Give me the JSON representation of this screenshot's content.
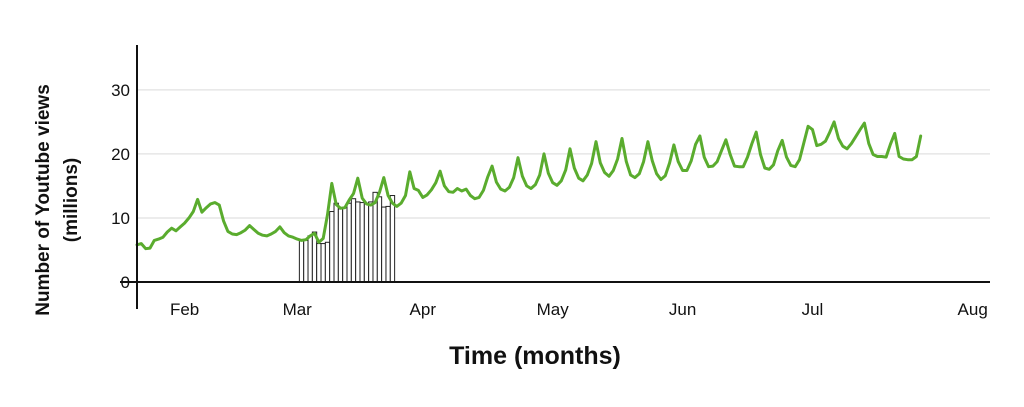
{
  "chart_data": {
    "type": "line",
    "xlabel": "Time (months)",
    "ylabel_lines": [
      "Number of Youtube views",
      "(millions)"
    ],
    "ylim": [
      0,
      37
    ],
    "xlim": [
      "2013-01-25",
      "2013-08-10"
    ],
    "y_ticks": [
      0,
      10,
      20,
      30
    ],
    "x_ticks": [
      {
        "label": "Feb",
        "date": "2013-02-05"
      },
      {
        "label": "Mar",
        "date": "2013-03-03"
      },
      {
        "label": "Apr",
        "date": "2013-04-01"
      },
      {
        "label": "May",
        "date": "2013-05-01"
      },
      {
        "label": "Jun",
        "date": "2013-05-31"
      },
      {
        "label": "Jul",
        "date": "2013-06-30"
      },
      {
        "label": "Aug",
        "date": "2013-08-06"
      }
    ],
    "grid": true,
    "colors": {
      "line": "#5aac2e",
      "bar_fill": "#ffffff",
      "bar_stroke": "#222222",
      "grid": "#e6e6e6",
      "axis": "#111111"
    },
    "series": [
      {
        "type": "line",
        "points": [
          [
            "2013-01-25",
            5.8
          ],
          [
            "2013-01-26",
            6.0
          ],
          [
            "2013-01-27",
            5.2
          ],
          [
            "2013-01-28",
            5.3
          ],
          [
            "2013-01-29",
            6.5
          ],
          [
            "2013-01-30",
            6.7
          ],
          [
            "2013-01-31",
            7.0
          ],
          [
            "2013-02-01",
            7.8
          ],
          [
            "2013-02-02",
            8.4
          ],
          [
            "2013-02-03",
            8.0
          ],
          [
            "2013-02-04",
            8.6
          ],
          [
            "2013-02-05",
            9.2
          ],
          [
            "2013-02-06",
            10.0
          ],
          [
            "2013-02-07",
            11.0
          ],
          [
            "2013-02-08",
            12.9
          ],
          [
            "2013-02-09",
            10.9
          ],
          [
            "2013-02-10",
            11.6
          ],
          [
            "2013-02-11",
            12.2
          ],
          [
            "2013-02-12",
            12.4
          ],
          [
            "2013-02-13",
            12.0
          ],
          [
            "2013-02-14",
            9.5
          ],
          [
            "2013-02-15",
            7.9
          ],
          [
            "2013-02-16",
            7.5
          ],
          [
            "2013-02-17",
            7.4
          ],
          [
            "2013-02-18",
            7.7
          ],
          [
            "2013-02-19",
            8.1
          ],
          [
            "2013-02-20",
            8.8
          ],
          [
            "2013-02-21",
            8.2
          ],
          [
            "2013-02-22",
            7.6
          ],
          [
            "2013-02-23",
            7.3
          ],
          [
            "2013-02-24",
            7.2
          ],
          [
            "2013-02-25",
            7.5
          ],
          [
            "2013-02-26",
            7.9
          ],
          [
            "2013-02-27",
            8.6
          ],
          [
            "2013-02-28",
            7.7
          ],
          [
            "2013-03-01",
            7.2
          ],
          [
            "2013-03-02",
            7.0
          ],
          [
            "2013-03-03",
            6.7
          ],
          [
            "2013-03-04",
            6.5
          ],
          [
            "2013-03-05",
            6.6
          ],
          [
            "2013-03-06",
            7.2
          ],
          [
            "2013-03-07",
            7.6
          ],
          [
            "2013-03-08",
            6.2
          ],
          [
            "2013-03-09",
            6.8
          ],
          [
            "2013-03-10",
            10.5
          ],
          [
            "2013-03-11",
            15.4
          ],
          [
            "2013-03-12",
            12.1
          ],
          [
            "2013-03-13",
            11.5
          ],
          [
            "2013-03-14",
            11.6
          ],
          [
            "2013-03-15",
            12.8
          ],
          [
            "2013-03-16",
            13.8
          ],
          [
            "2013-03-17",
            16.2
          ],
          [
            "2013-03-18",
            13.1
          ],
          [
            "2013-03-19",
            12.2
          ],
          [
            "2013-03-20",
            12.0
          ],
          [
            "2013-03-21",
            12.4
          ],
          [
            "2013-03-22",
            14.0
          ],
          [
            "2013-03-23",
            16.3
          ],
          [
            "2013-03-24",
            13.5
          ],
          [
            "2013-03-25",
            12.3
          ],
          [
            "2013-03-26",
            11.8
          ],
          [
            "2013-03-27",
            12.3
          ],
          [
            "2013-03-28",
            13.5
          ],
          [
            "2013-03-29",
            17.2
          ],
          [
            "2013-03-30",
            14.6
          ],
          [
            "2013-03-31",
            14.3
          ],
          [
            "2013-04-01",
            13.2
          ],
          [
            "2013-04-02",
            13.6
          ],
          [
            "2013-04-03",
            14.4
          ],
          [
            "2013-04-04",
            15.5
          ],
          [
            "2013-04-05",
            17.3
          ],
          [
            "2013-04-06",
            15.0
          ],
          [
            "2013-04-07",
            14.1
          ],
          [
            "2013-04-08",
            14.0
          ],
          [
            "2013-04-09",
            14.6
          ],
          [
            "2013-04-10",
            14.2
          ],
          [
            "2013-04-11",
            14.5
          ],
          [
            "2013-04-12",
            13.5
          ],
          [
            "2013-04-13",
            13.0
          ],
          [
            "2013-04-14",
            13.2
          ],
          [
            "2013-04-15",
            14.3
          ],
          [
            "2013-04-16",
            16.4
          ],
          [
            "2013-04-17",
            18.1
          ],
          [
            "2013-04-18",
            15.6
          ],
          [
            "2013-04-19",
            14.5
          ],
          [
            "2013-04-20",
            14.2
          ],
          [
            "2013-04-21",
            14.8
          ],
          [
            "2013-04-22",
            16.3
          ],
          [
            "2013-04-23",
            19.4
          ],
          [
            "2013-04-24",
            16.5
          ],
          [
            "2013-04-25",
            15.0
          ],
          [
            "2013-04-26",
            14.6
          ],
          [
            "2013-04-27",
            15.2
          ],
          [
            "2013-04-28",
            16.7
          ],
          [
            "2013-04-29",
            20.0
          ],
          [
            "2013-04-30",
            17.0
          ],
          [
            "2013-05-01",
            15.5
          ],
          [
            "2013-05-02",
            15.1
          ],
          [
            "2013-05-03",
            15.8
          ],
          [
            "2013-05-04",
            17.5
          ],
          [
            "2013-05-05",
            20.8
          ],
          [
            "2013-05-06",
            17.8
          ],
          [
            "2013-05-07",
            16.2
          ],
          [
            "2013-05-08",
            15.8
          ],
          [
            "2013-05-09",
            16.7
          ],
          [
            "2013-05-10",
            18.5
          ],
          [
            "2013-05-11",
            21.9
          ],
          [
            "2013-05-12",
            18.6
          ],
          [
            "2013-05-13",
            17.1
          ],
          [
            "2013-05-14",
            16.5
          ],
          [
            "2013-05-15",
            17.4
          ],
          [
            "2013-05-16",
            19.2
          ],
          [
            "2013-05-17",
            22.4
          ],
          [
            "2013-05-18",
            18.8
          ],
          [
            "2013-05-19",
            16.7
          ],
          [
            "2013-05-20",
            16.3
          ],
          [
            "2013-05-21",
            16.9
          ],
          [
            "2013-05-22",
            18.8
          ],
          [
            "2013-05-23",
            21.9
          ],
          [
            "2013-05-24",
            18.9
          ],
          [
            "2013-05-25",
            16.9
          ],
          [
            "2013-05-26",
            16.0
          ],
          [
            "2013-05-27",
            16.6
          ],
          [
            "2013-05-28",
            18.6
          ],
          [
            "2013-05-29",
            21.4
          ],
          [
            "2013-05-30",
            18.8
          ],
          [
            "2013-05-31",
            17.4
          ],
          [
            "2013-06-01",
            17.4
          ],
          [
            "2013-06-02",
            18.9
          ],
          [
            "2013-06-03",
            21.5
          ],
          [
            "2013-06-04",
            22.8
          ],
          [
            "2013-06-05",
            19.5
          ],
          [
            "2013-06-06",
            18.0
          ],
          [
            "2013-06-07",
            18.1
          ],
          [
            "2013-06-08",
            18.8
          ],
          [
            "2013-06-09",
            20.5
          ],
          [
            "2013-06-10",
            22.2
          ],
          [
            "2013-06-11",
            19.9
          ],
          [
            "2013-06-12",
            18.1
          ],
          [
            "2013-06-13",
            18.0
          ],
          [
            "2013-06-14",
            18.0
          ],
          [
            "2013-06-15",
            19.5
          ],
          [
            "2013-06-16",
            21.6
          ],
          [
            "2013-06-17",
            23.4
          ],
          [
            "2013-06-18",
            19.9
          ],
          [
            "2013-06-19",
            17.8
          ],
          [
            "2013-06-20",
            17.6
          ],
          [
            "2013-06-21",
            18.3
          ],
          [
            "2013-06-22",
            20.5
          ],
          [
            "2013-06-23",
            22.1
          ],
          [
            "2013-06-24",
            19.5
          ],
          [
            "2013-06-25",
            18.2
          ],
          [
            "2013-06-26",
            18.0
          ],
          [
            "2013-06-27",
            19.1
          ],
          [
            "2013-06-28",
            21.7
          ],
          [
            "2013-06-29",
            24.3
          ],
          [
            "2013-06-30",
            23.8
          ],
          [
            "2013-07-01",
            21.3
          ],
          [
            "2013-07-02",
            21.5
          ],
          [
            "2013-07-03",
            22.0
          ],
          [
            "2013-07-04",
            23.4
          ],
          [
            "2013-07-05",
            25.0
          ],
          [
            "2013-07-06",
            22.4
          ],
          [
            "2013-07-07",
            21.2
          ],
          [
            "2013-07-08",
            20.8
          ],
          [
            "2013-07-09",
            21.6
          ],
          [
            "2013-07-10",
            22.7
          ],
          [
            "2013-07-11",
            23.8
          ],
          [
            "2013-07-12",
            24.8
          ],
          [
            "2013-07-13",
            21.6
          ],
          [
            "2013-07-14",
            19.9
          ],
          [
            "2013-07-15",
            19.6
          ],
          [
            "2013-07-16",
            19.6
          ],
          [
            "2013-07-17",
            19.5
          ],
          [
            "2013-07-18",
            21.5
          ],
          [
            "2013-07-19",
            23.2
          ],
          [
            "2013-07-20",
            19.6
          ],
          [
            "2013-07-21",
            19.2
          ],
          [
            "2013-07-22",
            19.1
          ],
          [
            "2013-07-23",
            19.1
          ],
          [
            "2013-07-24",
            19.6
          ],
          [
            "2013-07-25",
            22.8
          ]
        ]
      },
      {
        "type": "bar",
        "points": [
          [
            "2013-03-04",
            6.5
          ],
          [
            "2013-03-05",
            6.5
          ],
          [
            "2013-03-06",
            7.2
          ],
          [
            "2013-03-07",
            7.8
          ],
          [
            "2013-03-08",
            6.0
          ],
          [
            "2013-03-09",
            6.0
          ],
          [
            "2013-03-10",
            6.2
          ],
          [
            "2013-03-11",
            11.0
          ],
          [
            "2013-03-12",
            12.3
          ],
          [
            "2013-03-13",
            11.4
          ],
          [
            "2013-03-14",
            11.6
          ],
          [
            "2013-03-15",
            12.3
          ],
          [
            "2013-03-16",
            13.0
          ],
          [
            "2013-03-17",
            12.5
          ],
          [
            "2013-03-18",
            12.4
          ],
          [
            "2013-03-19",
            12.3
          ],
          [
            "2013-03-20",
            12.5
          ],
          [
            "2013-03-21",
            14.0
          ],
          [
            "2013-03-22",
            13.3
          ],
          [
            "2013-03-23",
            11.7
          ],
          [
            "2013-03-24",
            11.8
          ],
          [
            "2013-03-25",
            13.5
          ]
        ]
      }
    ]
  }
}
